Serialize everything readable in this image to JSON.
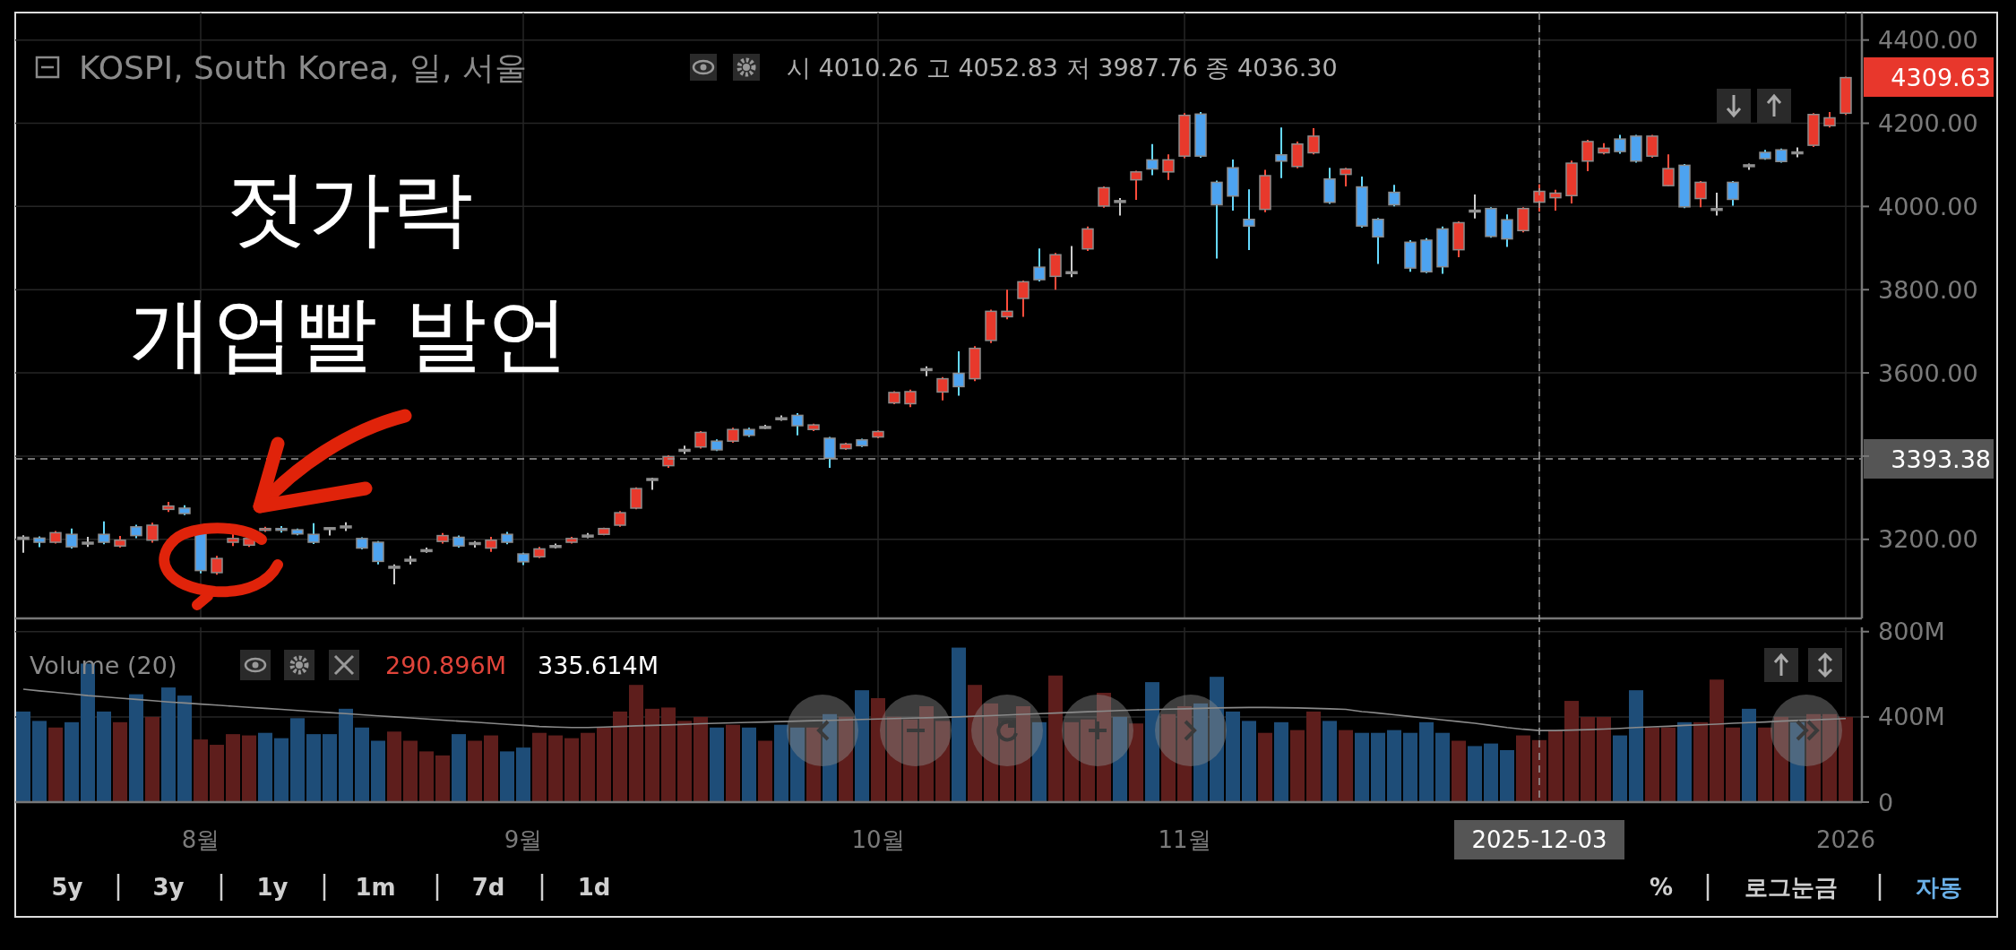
{
  "chart_data": [
    {
      "type": "candlestick",
      "title": "KOSPI, South Korea, 일, 서울",
      "categories": [
        null,
        null,
        null,
        null,
        null,
        null,
        null,
        null,
        null,
        null,
        null,
        null,
        null,
        null,
        null,
        null,
        null,
        null,
        null,
        null,
        null,
        null,
        null,
        null,
        null,
        null,
        null,
        null,
        null,
        null,
        null,
        null,
        null,
        null,
        null,
        null,
        null,
        null,
        null,
        null,
        null,
        null,
        null,
        null,
        null,
        null,
        null,
        null,
        null,
        null,
        null,
        null,
        null,
        null,
        null,
        null,
        null,
        null,
        null,
        null,
        null,
        null,
        null,
        null,
        null,
        null,
        null,
        null,
        null,
        null,
        null,
        null,
        null,
        null,
        null,
        null,
        null,
        null,
        null,
        null,
        null,
        null,
        null,
        null,
        null,
        null,
        null,
        null,
        null,
        null,
        null,
        null,
        null,
        null,
        null,
        null,
        null,
        null,
        null,
        null,
        null,
        null,
        null,
        null,
        null,
        null,
        null,
        null,
        null,
        null,
        null,
        null,
        null,
        null
      ],
      "ohlc": [
        [
          3205,
          3210,
          3168,
          3200
        ],
        [
          3203,
          3207,
          3181,
          3193
        ],
        [
          3193,
          3220,
          3190,
          3216
        ],
        [
          3212,
          3226,
          3178,
          3182
        ],
        [
          3193,
          3206,
          3182,
          3192
        ],
        [
          3212,
          3243,
          3188,
          3193
        ],
        [
          3184,
          3208,
          3180,
          3198
        ],
        [
          3230,
          3235,
          3203,
          3209
        ],
        [
          3198,
          3240,
          3192,
          3234
        ],
        [
          3272,
          3290,
          3266,
          3280
        ],
        [
          3275,
          3282,
          3258,
          3262
        ],
        [
          3215,
          3220,
          3118,
          3125
        ],
        [
          3120,
          3160,
          3115,
          3154
        ],
        [
          3193,
          3216,
          3184,
          3202
        ],
        [
          3186,
          3206,
          3182,
          3202
        ],
        [
          3222,
          3230,
          3218,
          3226
        ],
        [
          3226,
          3232,
          3216,
          3222
        ],
        [
          3223,
          3226,
          3210,
          3213
        ],
        [
          3212,
          3239,
          3189,
          3193
        ],
        [
          3228,
          3229,
          3209,
          3226
        ],
        [
          3230,
          3241,
          3220,
          3232
        ],
        [
          3202,
          3205,
          3176,
          3179
        ],
        [
          3193,
          3196,
          3140,
          3147
        ],
        [
          3135,
          3140,
          3092,
          3133
        ],
        [
          3152,
          3160,
          3140,
          3150
        ],
        [
          3175,
          3180,
          3168,
          3173
        ],
        [
          3195,
          3215,
          3190,
          3209
        ],
        [
          3205,
          3209,
          3180,
          3184
        ],
        [
          3192,
          3196,
          3180,
          3190
        ],
        [
          3179,
          3206,
          3170,
          3198
        ],
        [
          3212,
          3218,
          3188,
          3193
        ],
        [
          3165,
          3168,
          3138,
          3146
        ],
        [
          3158,
          3182,
          3155,
          3177
        ],
        [
          3183,
          3190,
          3178,
          3185
        ],
        [
          3193,
          3206,
          3190,
          3202
        ],
        [
          3208,
          3215,
          3203,
          3210
        ],
        [
          3212,
          3228,
          3210,
          3226
        ],
        [
          3234,
          3268,
          3230,
          3264
        ],
        [
          3275,
          3325,
          3272,
          3322
        ],
        [
          3346,
          3348,
          3319,
          3344
        ],
        [
          3377,
          3402,
          3372,
          3399
        ],
        [
          3414,
          3425,
          3405,
          3416
        ],
        [
          3422,
          3460,
          3418,
          3457
        ],
        [
          3436,
          3440,
          3412,
          3415
        ],
        [
          3436,
          3468,
          3432,
          3464
        ],
        [
          3464,
          3468,
          3446,
          3450
        ],
        [
          3471,
          3475,
          3465,
          3469
        ],
        [
          3490,
          3498,
          3485,
          3492
        ],
        [
          3498,
          3503,
          3450,
          3473
        ],
        [
          3464,
          3478,
          3460,
          3475
        ],
        [
          3443,
          3446,
          3372,
          3395
        ],
        [
          3418,
          3432,
          3415,
          3429
        ],
        [
          3439,
          3442,
          3422,
          3425
        ],
        [
          3446,
          3462,
          3443,
          3459
        ],
        [
          3528,
          3556,
          3525,
          3553
        ],
        [
          3526,
          3560,
          3518,
          3555
        ],
        [
          3608,
          3616,
          3592,
          3610
        ],
        [
          3554,
          3590,
          3534,
          3586
        ],
        [
          3599,
          3652,
          3545,
          3567
        ],
        [
          3586,
          3664,
          3580,
          3659
        ],
        [
          3678,
          3752,
          3672,
          3748
        ],
        [
          3735,
          3800,
          3729,
          3748
        ],
        [
          3779,
          3822,
          3735,
          3819
        ],
        [
          3854,
          3899,
          3820,
          3824
        ],
        [
          3832,
          3888,
          3800,
          3884
        ],
        [
          3843,
          3905,
          3830,
          3841
        ],
        [
          3898,
          3952,
          3893,
          3946
        ],
        [
          4001,
          4048,
          3997,
          4045
        ],
        [
          4012,
          4020,
          3978,
          4014
        ],
        [
          4064,
          4086,
          4016,
          4083
        ],
        [
          4112,
          4150,
          4075,
          4090
        ],
        [
          4083,
          4125,
          4064,
          4112
        ],
        [
          4121,
          4224,
          4116,
          4219
        ],
        [
          4222,
          4227,
          4117,
          4121
        ],
        [
          4058,
          4062,
          3875,
          4004
        ],
        [
          4093,
          4113,
          3990,
          4025
        ],
        [
          3969,
          4041,
          3895,
          3953
        ],
        [
          3993,
          4088,
          3986,
          4074
        ],
        [
          4124,
          4190,
          4068,
          4109
        ],
        [
          4096,
          4156,
          4092,
          4150
        ],
        [
          4129,
          4188,
          4125,
          4169
        ],
        [
          4066,
          4093,
          4006,
          4010
        ],
        [
          4077,
          4093,
          4048,
          4090
        ],
        [
          4047,
          4072,
          3949,
          3953
        ],
        [
          3969,
          3972,
          3862,
          3927
        ],
        [
          4034,
          4052,
          4000,
          4004
        ],
        [
          3914,
          3919,
          3843,
          3852
        ],
        [
          3919,
          3924,
          3840,
          3843
        ],
        [
          3946,
          3952,
          3838,
          3855
        ],
        [
          3896,
          3964,
          3878,
          3961
        ],
        [
          3991,
          4029,
          3971,
          3989
        ],
        [
          3995,
          3998,
          3925,
          3928
        ],
        [
          3968,
          3981,
          3903,
          3922
        ],
        [
          3942,
          3998,
          3938,
          3995
        ],
        [
          4010.26,
          4052.83,
          3987.76,
          4036.3
        ],
        [
          4021,
          4040,
          3990,
          4032
        ],
        [
          4026,
          4110,
          4007,
          4104
        ],
        [
          4109,
          4160,
          4085,
          4156
        ],
        [
          4129,
          4152,
          4125,
          4140
        ],
        [
          4162,
          4172,
          4127,
          4132
        ],
        [
          4169,
          4172,
          4105,
          4109
        ],
        [
          4121,
          4172,
          4117,
          4169
        ],
        [
          4050,
          4125,
          4048,
          4091
        ],
        [
          4099,
          4102,
          3996,
          3999
        ],
        [
          4019,
          4061,
          3998,
          4058
        ],
        [
          3995,
          4033,
          3978,
          3994
        ],
        [
          4058,
          4061,
          4002,
          4017
        ],
        [
          4100,
          4103,
          4088,
          4096
        ],
        [
          4130,
          4136,
          4112,
          4115
        ],
        [
          4136,
          4139,
          4105,
          4108
        ],
        [
          4129,
          4142,
          4118,
          4131
        ],
        [
          4147,
          4224,
          4143,
          4221
        ],
        [
          4194,
          4227,
          4190,
          4213
        ],
        [
          4224,
          4312,
          4220,
          4309.63
        ]
      ],
      "colors": [
        "#9a9a9a",
        "#4da3f0",
        "#e8392c",
        "#4da3f0",
        "#9a9a9a",
        "#4da3f0",
        "#e8392c",
        "#4da3f0",
        "#e8392c",
        "#e8392c",
        "#4da3f0",
        "#4da3f0",
        "#e8392c",
        "#e8392c",
        "#e8392c",
        "#e8392c",
        "#4da3f0",
        "#4da3f0",
        "#4da3f0",
        "#9a9a9a",
        "#9a9a9a",
        "#4da3f0",
        "#4da3f0",
        "#9a9a9a",
        "#9a9a9a",
        "#9a9a9a",
        "#e8392c",
        "#4da3f0",
        "#9a9a9a",
        "#e8392c",
        "#4da3f0",
        "#4da3f0",
        "#e8392c",
        "#9a9a9a",
        "#e8392c",
        "#9a9a9a",
        "#e8392c",
        "#e8392c",
        "#e8392c",
        "#9a9a9a",
        "#e8392c",
        "#9a9a9a",
        "#e8392c",
        "#4da3f0",
        "#e8392c",
        "#4da3f0",
        "#9a9a9a",
        "#9a9a9a",
        "#4da3f0",
        "#e8392c",
        "#4da3f0",
        "#e8392c",
        "#4da3f0",
        "#e8392c",
        "#e8392c",
        "#e8392c",
        "#9a9a9a",
        "#e8392c",
        "#4da3f0",
        "#e8392c",
        "#e8392c",
        "#e8392c",
        "#e8392c",
        "#4da3f0",
        "#e8392c",
        "#9a9a9a",
        "#e8392c",
        "#e8392c",
        "#9a9a9a",
        "#e8392c",
        "#4da3f0",
        "#e8392c",
        "#e8392c",
        "#4da3f0",
        "#4da3f0",
        "#4da3f0",
        "#4da3f0",
        "#e8392c",
        "#4da3f0",
        "#e8392c",
        "#e8392c",
        "#4da3f0",
        "#e8392c",
        "#4da3f0",
        "#4da3f0",
        "#4da3f0",
        "#4da3f0",
        "#4da3f0",
        "#4da3f0",
        "#e8392c",
        "#9a9a9a",
        "#4da3f0",
        "#4da3f0",
        "#e8392c",
        "#e8392c",
        "#e8392c",
        "#e8392c",
        "#e8392c",
        "#e8392c",
        "#4da3f0",
        "#4da3f0",
        "#e8392c",
        "#e8392c",
        "#4da3f0",
        "#e8392c",
        "#9a9a9a",
        "#4da3f0",
        "#9a9a9a",
        "#4da3f0",
        "#4da3f0",
        "#9a9a9a",
        "#e8392c",
        "#e8392c",
        "#e8392c"
      ],
      "ylim": [
        3010,
        4466
      ],
      "yticks": [
        {
          "value": 3200,
          "label": "3200.00"
        },
        {
          "value": 3400,
          "label": null
        },
        {
          "value": 3600,
          "label": "3600.00"
        },
        {
          "value": 3800,
          "label": "3800.00"
        },
        {
          "value": 4000,
          "label": "4000.00"
        },
        {
          "value": 4200,
          "label": "4200.00"
        },
        {
          "value": 4400,
          "label": "4400.00"
        }
      ],
      "grid": true,
      "tick_labels": "y",
      "ref_lines": [
        {
          "axis": "y",
          "value": 3393.38,
          "label": "3393.38",
          "line_style": "dashed"
        }
      ],
      "annotations": [
        "시 4010.26 고 4052.83 저 3987.76 종 4036.30",
        "젓가락",
        "개업빨 발언",
        "4309.63"
      ]
    },
    {
      "type": "bar",
      "title": "Volume (20)",
      "categories": [
        null,
        null,
        null,
        null,
        null,
        null,
        null,
        null,
        null,
        null,
        null,
        "8월",
        null,
        null,
        null,
        null,
        null,
        null,
        null,
        null,
        null,
        null,
        null,
        null,
        null,
        null,
        null,
        null,
        null,
        null,
        null,
        "9월",
        null,
        null,
        null,
        null,
        null,
        null,
        null,
        null,
        null,
        null,
        null,
        null,
        null,
        null,
        null,
        null,
        null,
        null,
        null,
        null,
        null,
        "10월",
        null,
        null,
        null,
        null,
        null,
        null,
        null,
        null,
        null,
        null,
        null,
        null,
        null,
        null,
        null,
        null,
        null,
        null,
        "11월",
        null,
        null,
        null,
        null,
        null,
        null,
        null,
        null,
        null,
        null,
        null,
        null,
        null,
        null,
        null,
        null,
        null,
        null,
        null,
        null,
        null,
        "2025-12-03",
        null,
        null,
        null,
        null,
        null,
        null,
        null,
        null,
        null,
        null,
        null,
        null,
        null,
        null,
        null,
        null,
        null,
        null,
        "2026"
      ],
      "series": [
        {
          "values": [
            425,
            381,
            350,
            375,
            650,
            425,
            375,
            506,
            400,
            538,
            500,
            294,
            269,
            319,
            313,
            325,
            300,
            394,
            319,
            319,
            438,
            350,
            288,
            331,
            288,
            238,
            219,
            319,
            288,
            313,
            238,
            256,
            325,
            313,
            300,
            325,
            350,
            425,
            550,
            438,
            444,
            381,
            400,
            350,
            363,
            350,
            288,
            363,
            350,
            350,
            413,
            400,
            525,
            488,
            400,
            388,
            450,
            381,
            725,
            550,
            463,
            375,
            450,
            375,
            594,
            375,
            388,
            513,
            400,
            369,
            563,
            413,
            450,
            463,
            588,
            425,
            381,
            325,
            375,
            338,
            425,
            381,
            338,
            325,
            325,
            338,
            325,
            375,
            325,
            288,
            263,
            275,
            244,
            313,
            291,
            338,
            475,
            400,
            400,
            313,
            525,
            350,
            350,
            375,
            375,
            575,
            350,
            438,
            350,
            400,
            375,
            413,
            413,
            400
          ],
          "colors": [
            "#1e4d78",
            "#1e4d78",
            "#5e1e1c",
            "#1e4d78",
            "#1e4d78",
            "#1e4d78",
            "#5e1e1c",
            "#1e4d78",
            "#5e1e1c",
            "#1e4d78",
            "#1e4d78",
            "#5e1e1c",
            "#5e1e1c",
            "#5e1e1c",
            "#5e1e1c",
            "#1e4d78",
            "#1e4d78",
            "#1e4d78",
            "#1e4d78",
            "#1e4d78",
            "#1e4d78",
            "#1e4d78",
            "#1e4d78",
            "#5e1e1c",
            "#5e1e1c",
            "#5e1e1c",
            "#5e1e1c",
            "#1e4d78",
            "#5e1e1c",
            "#5e1e1c",
            "#1e4d78",
            "#1e4d78",
            "#5e1e1c",
            "#5e1e1c",
            "#5e1e1c",
            "#5e1e1c",
            "#5e1e1c",
            "#5e1e1c",
            "#5e1e1c",
            "#5e1e1c",
            "#5e1e1c",
            "#5e1e1c",
            "#5e1e1c",
            "#1e4d78",
            "#5e1e1c",
            "#1e4d78",
            "#5e1e1c",
            "#1e4d78",
            "#1e4d78",
            "#5e1e1c",
            "#1e4d78",
            "#5e1e1c",
            "#1e4d78",
            "#5e1e1c",
            "#5e1e1c",
            "#5e1e1c",
            "#5e1e1c",
            "#5e1e1c",
            "#1e4d78",
            "#5e1e1c",
            "#5e1e1c",
            "#5e1e1c",
            "#5e1e1c",
            "#1e4d78",
            "#5e1e1c",
            "#5e1e1c",
            "#5e1e1c",
            "#5e1e1c",
            "#1e4d78",
            "#5e1e1c",
            "#1e4d78",
            "#5e1e1c",
            "#5e1e1c",
            "#1e4d78",
            "#1e4d78",
            "#1e4d78",
            "#1e4d78",
            "#5e1e1c",
            "#1e4d78",
            "#5e1e1c",
            "#5e1e1c",
            "#1e4d78",
            "#5e1e1c",
            "#1e4d78",
            "#1e4d78",
            "#1e4d78",
            "#1e4d78",
            "#1e4d78",
            "#1e4d78",
            "#5e1e1c",
            "#1e4d78",
            "#1e4d78",
            "#1e4d78",
            "#5e1e1c",
            "#5e1e1c",
            "#5e1e1c",
            "#5e1e1c",
            "#5e1e1c",
            "#5e1e1c",
            "#1e4d78",
            "#1e4d78",
            "#5e1e1c",
            "#5e1e1c",
            "#1e4d78",
            "#5e1e1c",
            "#5e1e1c",
            "#5e1e1c",
            "#1e4d78",
            "#5e1e1c",
            "#5e1e1c",
            "#1e4d78",
            "#5e1e1c",
            "#5e1e1c",
            "#5e1e1c"
          ]
        },
        {
          "type": "line",
          "color": "#8a8a8a",
          "values": [
            530,
            522,
            515,
            508,
            500,
            494,
            488,
            482,
            476,
            470,
            465,
            460,
            455,
            450,
            445,
            440,
            435,
            430,
            425,
            420,
            415,
            410,
            405,
            400,
            395,
            390,
            385,
            380,
            375,
            370,
            365,
            360,
            355,
            352,
            350,
            350,
            352,
            355,
            358,
            360,
            362,
            365,
            368,
            370,
            372,
            374,
            376,
            378,
            380,
            382,
            384,
            386,
            388,
            390,
            392,
            394,
            396,
            398,
            400,
            403,
            406,
            409,
            412,
            415,
            418,
            421,
            424,
            427,
            430,
            432,
            434,
            436,
            438,
            440,
            442,
            443,
            444,
            444,
            443,
            442,
            440,
            438,
            435,
            425,
            418,
            410,
            402,
            394,
            386,
            378,
            370,
            360,
            350,
            342,
            336,
            336,
            338,
            340,
            343,
            346,
            350,
            353,
            356,
            360,
            363,
            366,
            370,
            373,
            376,
            380,
            383,
            386,
            389,
            392
          ]
        }
      ],
      "ylim": [
        0,
        820
      ],
      "yticks": [
        {
          "value": 0,
          "label": "0"
        },
        {
          "value": 400,
          "label": "400M"
        },
        {
          "value": 800,
          "label": "800M"
        }
      ],
      "grid": true,
      "ref_lines": [
        {
          "axis": "x",
          "value": "2025-12-03",
          "line_style": "dashed"
        }
      ],
      "annotations": [
        "290.896M",
        "335.614M",
        "5y",
        "3y",
        "1y",
        "1m",
        "7d",
        "1d",
        "%",
        "로그눈금",
        "자동"
      ]
    }
  ]
}
